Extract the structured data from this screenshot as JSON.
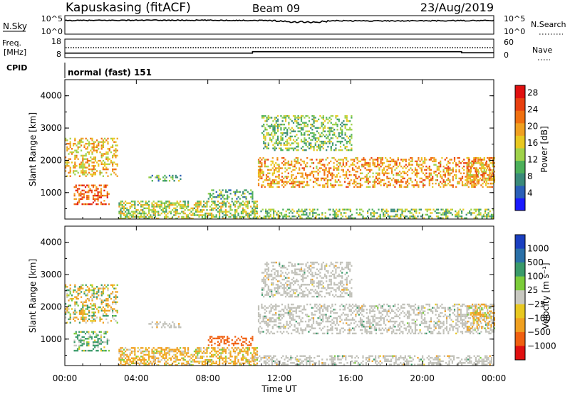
{
  "header": {
    "station": "Kapuskasing (fitACF)",
    "beam": "Beam 09",
    "date": "23/Aug/2019"
  },
  "strips": {
    "nsky": {
      "label": "N.Sky",
      "ticks": [
        "10^5",
        "10^0"
      ],
      "right_label": "N.Search",
      "right_ticks": [
        "10^5",
        "10^0"
      ]
    },
    "freq": {
      "label_line1": "Freq.",
      "label_line2": "[MHz]",
      "ticks": [
        "18",
        "8"
      ],
      "right_label": "Nave",
      "right_ticks": [
        "60",
        "0"
      ]
    },
    "cpid": {
      "label": "CPID",
      "text": "normal (fast) 151"
    }
  },
  "panels": {
    "power": {
      "ylabel": "Slant Range [km]",
      "ytick_labels": [
        "1000",
        "2000",
        "3000",
        "4000"
      ],
      "colorbar_label": "Power [dB]",
      "colorbar_ticks": [
        "4",
        "8",
        "12",
        "16",
        "20",
        "24",
        "28"
      ],
      "colors": [
        "#1a1aff",
        "#2a5fb8",
        "#3a8a7a",
        "#4cb05a",
        "#9fd24a",
        "#e8c820",
        "#f0a020",
        "#f07010",
        "#e84010",
        "#e01010"
      ]
    },
    "velocity": {
      "ylabel": "Slant Range [km]",
      "ytick_labels": [
        "1000",
        "2000",
        "3000",
        "4000"
      ],
      "colorbar_label": "Velocity [m s⁻¹]",
      "colorbar_ticks": [
        "1000",
        "500",
        "100",
        "25",
        "−25",
        "−100",
        "−500",
        "−1000"
      ],
      "colors": [
        "#1a3fc0",
        "#2a70a8",
        "#3a9a6a",
        "#7ccc3a",
        "#c8c8c0",
        "#e8c820",
        "#f0a020",
        "#f06010",
        "#e01010"
      ],
      "ground_scatter": "#c0c0b8"
    }
  },
  "xaxis": {
    "label": "Time UT",
    "tick_labels": [
      "00:00",
      "04:00",
      "08:00",
      "12:00",
      "16:00",
      "20:00",
      "00:00"
    ]
  },
  "chart_data": {
    "type": "heatmap",
    "title": "Kapuskasing (fitACF)",
    "x_unit": "hours UT",
    "xlim": [
      0,
      24
    ],
    "ylim": [
      180,
      4500
    ],
    "xlabel": "Time UT",
    "ylabel": "Slant Range [km]",
    "power_scale_db": [
      0,
      30
    ],
    "velocity_scale_ms": [
      -1000,
      1000
    ],
    "echo_regions": [
      {
        "t": [
          0.0,
          2.9
        ],
        "r": [
          1500,
          2700
        ],
        "power_db": 18,
        "velocity": -25,
        "kind": "ionospheric"
      },
      {
        "t": [
          0.5,
          2.5
        ],
        "r": [
          650,
          1250
        ],
        "power_db": 24,
        "velocity": 100,
        "kind": "ionospheric"
      },
      {
        "t": [
          3.0,
          10.8
        ],
        "r": [
          200,
          750
        ],
        "power_db": 14,
        "velocity": -100,
        "kind": "near-range"
      },
      {
        "t": [
          4.5,
          6.5
        ],
        "r": [
          1350,
          1550
        ],
        "power_db": 10,
        "velocity": 0,
        "kind": "ground"
      },
      {
        "t": [
          8.0,
          10.5
        ],
        "r": [
          800,
          1100
        ],
        "power_db": 10,
        "velocity": -500,
        "kind": "ionospheric"
      },
      {
        "t": [
          10.5,
          24.0
        ],
        "r": [
          200,
          500
        ],
        "power_db": 12,
        "velocity": 0,
        "kind": "ground"
      },
      {
        "t": [
          10.8,
          24.0
        ],
        "r": [
          1150,
          2100
        ],
        "power_db": 20,
        "velocity": 0,
        "kind": "ground"
      },
      {
        "t": [
          11.0,
          16.0
        ],
        "r": [
          2300,
          3400
        ],
        "power_db": 12,
        "velocity": 0,
        "kind": "ground"
      },
      {
        "t": [
          22.5,
          24.0
        ],
        "r": [
          1300,
          2100
        ],
        "power_db": 20,
        "velocity": -100,
        "kind": "ionospheric"
      }
    ],
    "nsky_log_level": 4.2,
    "frequency_mhz": 10.8,
    "nave_approx": 38
  }
}
